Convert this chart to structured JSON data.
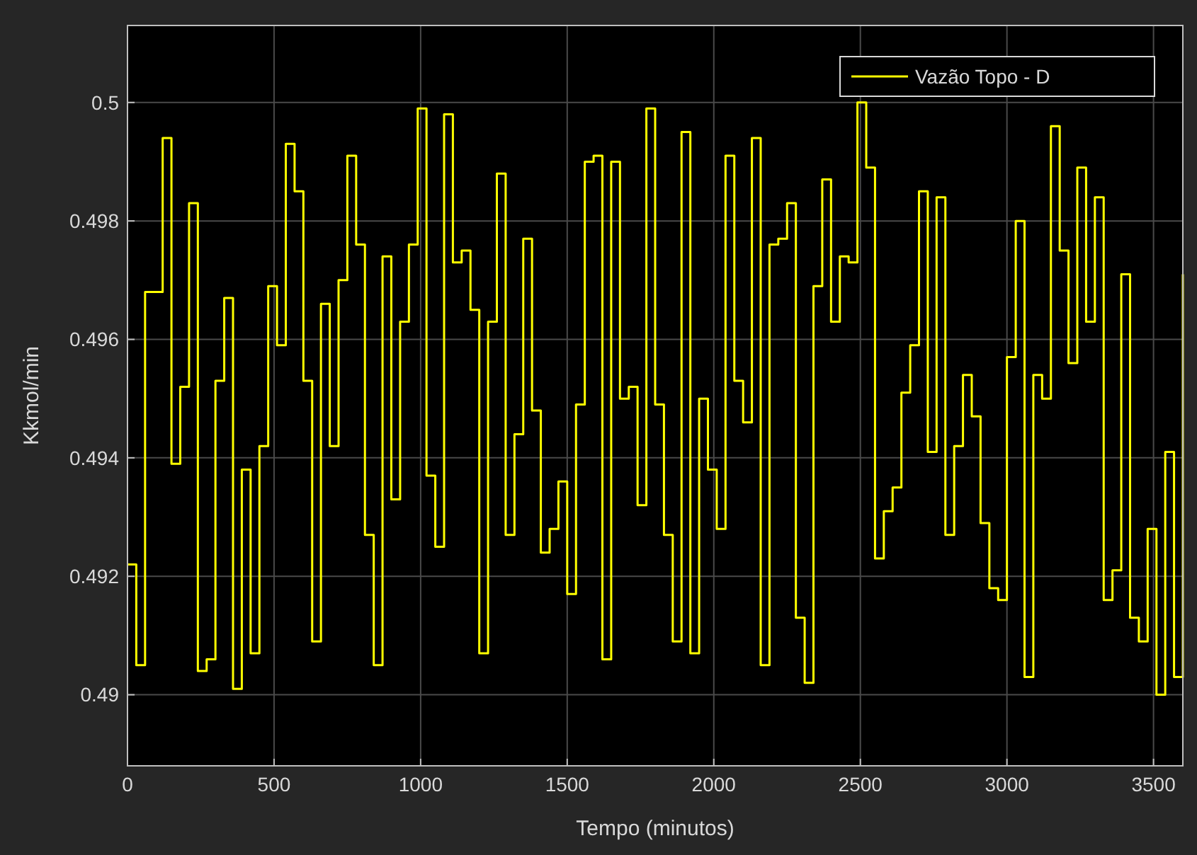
{
  "chart_data": {
    "type": "step",
    "xlabel": "Tempo (minutos)",
    "ylabel": "Kkmol/min",
    "x": [
      0,
      30,
      60,
      90,
      120,
      150,
      180,
      210,
      240,
      270,
      300,
      330,
      360,
      390,
      420,
      450,
      480,
      510,
      540,
      570,
      600,
      630,
      660,
      690,
      720,
      750,
      780,
      810,
      840,
      870,
      900,
      930,
      960,
      990,
      1020,
      1050,
      1080,
      1110,
      1140,
      1170,
      1200,
      1230,
      1260,
      1290,
      1320,
      1350,
      1380,
      1410,
      1440,
      1470,
      1500,
      1530,
      1560,
      1590,
      1620,
      1650,
      1680,
      1710,
      1740,
      1770,
      1800,
      1830,
      1860,
      1890,
      1920,
      1950,
      1980,
      2010,
      2040,
      2070,
      2100,
      2130,
      2160,
      2190,
      2220,
      2250,
      2280,
      2310,
      2340,
      2370,
      2400,
      2430,
      2460,
      2490,
      2520,
      2550,
      2580,
      2610,
      2640,
      2670,
      2700,
      2730,
      2760,
      2790,
      2820,
      2850,
      2880,
      2910,
      2940,
      2970,
      3000,
      3030,
      3060,
      3090,
      3120,
      3150,
      3180,
      3210,
      3240,
      3270,
      3300,
      3330,
      3360,
      3390,
      3420,
      3450,
      3480,
      3510,
      3540,
      3570,
      3600
    ],
    "series": [
      {
        "name": "Vazão Topo - D",
        "color": "#ffff00",
        "values": [
          0.4922,
          0.4905,
          0.4968,
          0.4968,
          0.4994,
          0.4939,
          0.4952,
          0.4983,
          0.4904,
          0.4906,
          0.4953,
          0.4967,
          0.4901,
          0.4938,
          0.4907,
          0.4942,
          0.4969,
          0.4959,
          0.4993,
          0.4985,
          0.4953,
          0.4909,
          0.4966,
          0.4942,
          0.497,
          0.4991,
          0.4976,
          0.4927,
          0.4905,
          0.4974,
          0.4933,
          0.4963,
          0.4976,
          0.4999,
          0.4937,
          0.4925,
          0.4998,
          0.4973,
          0.4975,
          0.4965,
          0.4907,
          0.4963,
          0.4988,
          0.4927,
          0.4944,
          0.4977,
          0.4948,
          0.4924,
          0.4928,
          0.4936,
          0.4917,
          0.4949,
          0.499,
          0.4991,
          0.4906,
          0.499,
          0.495,
          0.4952,
          0.4932,
          0.4999,
          0.4949,
          0.4927,
          0.4909,
          0.4995,
          0.4907,
          0.495,
          0.4938,
          0.4928,
          0.4991,
          0.4953,
          0.4946,
          0.4994,
          0.4905,
          0.4976,
          0.4977,
          0.4983,
          0.4913,
          0.4902,
          0.4969,
          0.4987,
          0.4963,
          0.4974,
          0.4973,
          0.5,
          0.4989,
          0.4923,
          0.4931,
          0.4935,
          0.4951,
          0.4959,
          0.4985,
          0.4941,
          0.4984,
          0.4927,
          0.4942,
          0.4954,
          0.4947,
          0.4929,
          0.4918,
          0.4916,
          0.4957,
          0.498,
          0.4903,
          0.4954,
          0.495,
          0.4996,
          0.4975,
          0.4956,
          0.4989,
          0.4963,
          0.4984,
          0.4916,
          0.4921,
          0.4971,
          0.4913,
          0.4909,
          0.4928,
          0.49,
          0.4941,
          0.4903,
          0.4971
        ]
      }
    ],
    "xlim": [
      0,
      3600
    ],
    "xticks": [
      0,
      500,
      1000,
      1500,
      2000,
      2500,
      3000,
      3500
    ],
    "ylim": [
      0.4888,
      0.5013
    ],
    "yticks": [
      0.49,
      0.492,
      0.494,
      0.496,
      0.498,
      0.5
    ],
    "grid": true,
    "legend": "top right"
  }
}
